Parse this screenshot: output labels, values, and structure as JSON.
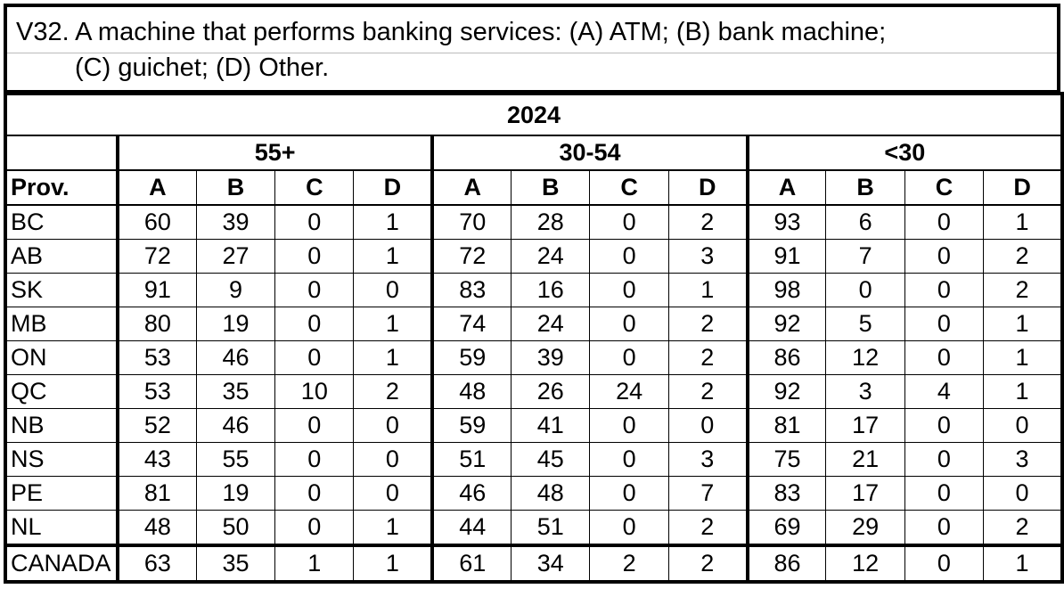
{
  "question": {
    "line1": "V32. A machine that performs banking services: (A) ATM; (B) bank machine;",
    "line2": "(C) guichet; (D) Other."
  },
  "table": {
    "year": "2024",
    "groups": [
      "55+",
      "30-54",
      "<30"
    ],
    "row_header": "Prov.",
    "columns": [
      "A",
      "B",
      "C",
      "D"
    ],
    "rows": [
      {
        "prov": "BC",
        "values": [
          "60",
          "39",
          "0",
          "1",
          "70",
          "28",
          "0",
          "2",
          "93",
          "6",
          "0",
          "1"
        ]
      },
      {
        "prov": "AB",
        "values": [
          "72",
          "27",
          "0",
          "1",
          "72",
          "24",
          "0",
          "3",
          "91",
          "7",
          "0",
          "2"
        ]
      },
      {
        "prov": "SK",
        "values": [
          "91",
          "9",
          "0",
          "0",
          "83",
          "16",
          "0",
          "1",
          "98",
          "0",
          "0",
          "2"
        ]
      },
      {
        "prov": "MB",
        "values": [
          "80",
          "19",
          "0",
          "1",
          "74",
          "24",
          "0",
          "2",
          "92",
          "5",
          "0",
          "1"
        ]
      },
      {
        "prov": "ON",
        "values": [
          "53",
          "46",
          "0",
          "1",
          "59",
          "39",
          "0",
          "2",
          "86",
          "12",
          "0",
          "1"
        ]
      },
      {
        "prov": "QC",
        "values": [
          "53",
          "35",
          "10",
          "2",
          "48",
          "26",
          "24",
          "2",
          "92",
          "3",
          "4",
          "1"
        ]
      },
      {
        "prov": "NB",
        "values": [
          "52",
          "46",
          "0",
          "0",
          "59",
          "41",
          "0",
          "0",
          "81",
          "17",
          "0",
          "0"
        ]
      },
      {
        "prov": "NS",
        "values": [
          "43",
          "55",
          "0",
          "0",
          "51",
          "45",
          "0",
          "3",
          "75",
          "21",
          "0",
          "3"
        ]
      },
      {
        "prov": "PE",
        "values": [
          "81",
          "19",
          "0",
          "0",
          "46",
          "48",
          "0",
          "7",
          "83",
          "17",
          "0",
          "0"
        ]
      },
      {
        "prov": "NL",
        "values": [
          "48",
          "50",
          "0",
          "1",
          "44",
          "51",
          "0",
          "2",
          "69",
          "29",
          "0",
          "2"
        ]
      }
    ],
    "total": {
      "prov": "CANADA",
      "values": [
        "63",
        "35",
        "1",
        "1",
        "61",
        "34",
        "2",
        "2",
        "86",
        "12",
        "0",
        "1"
      ]
    }
  }
}
